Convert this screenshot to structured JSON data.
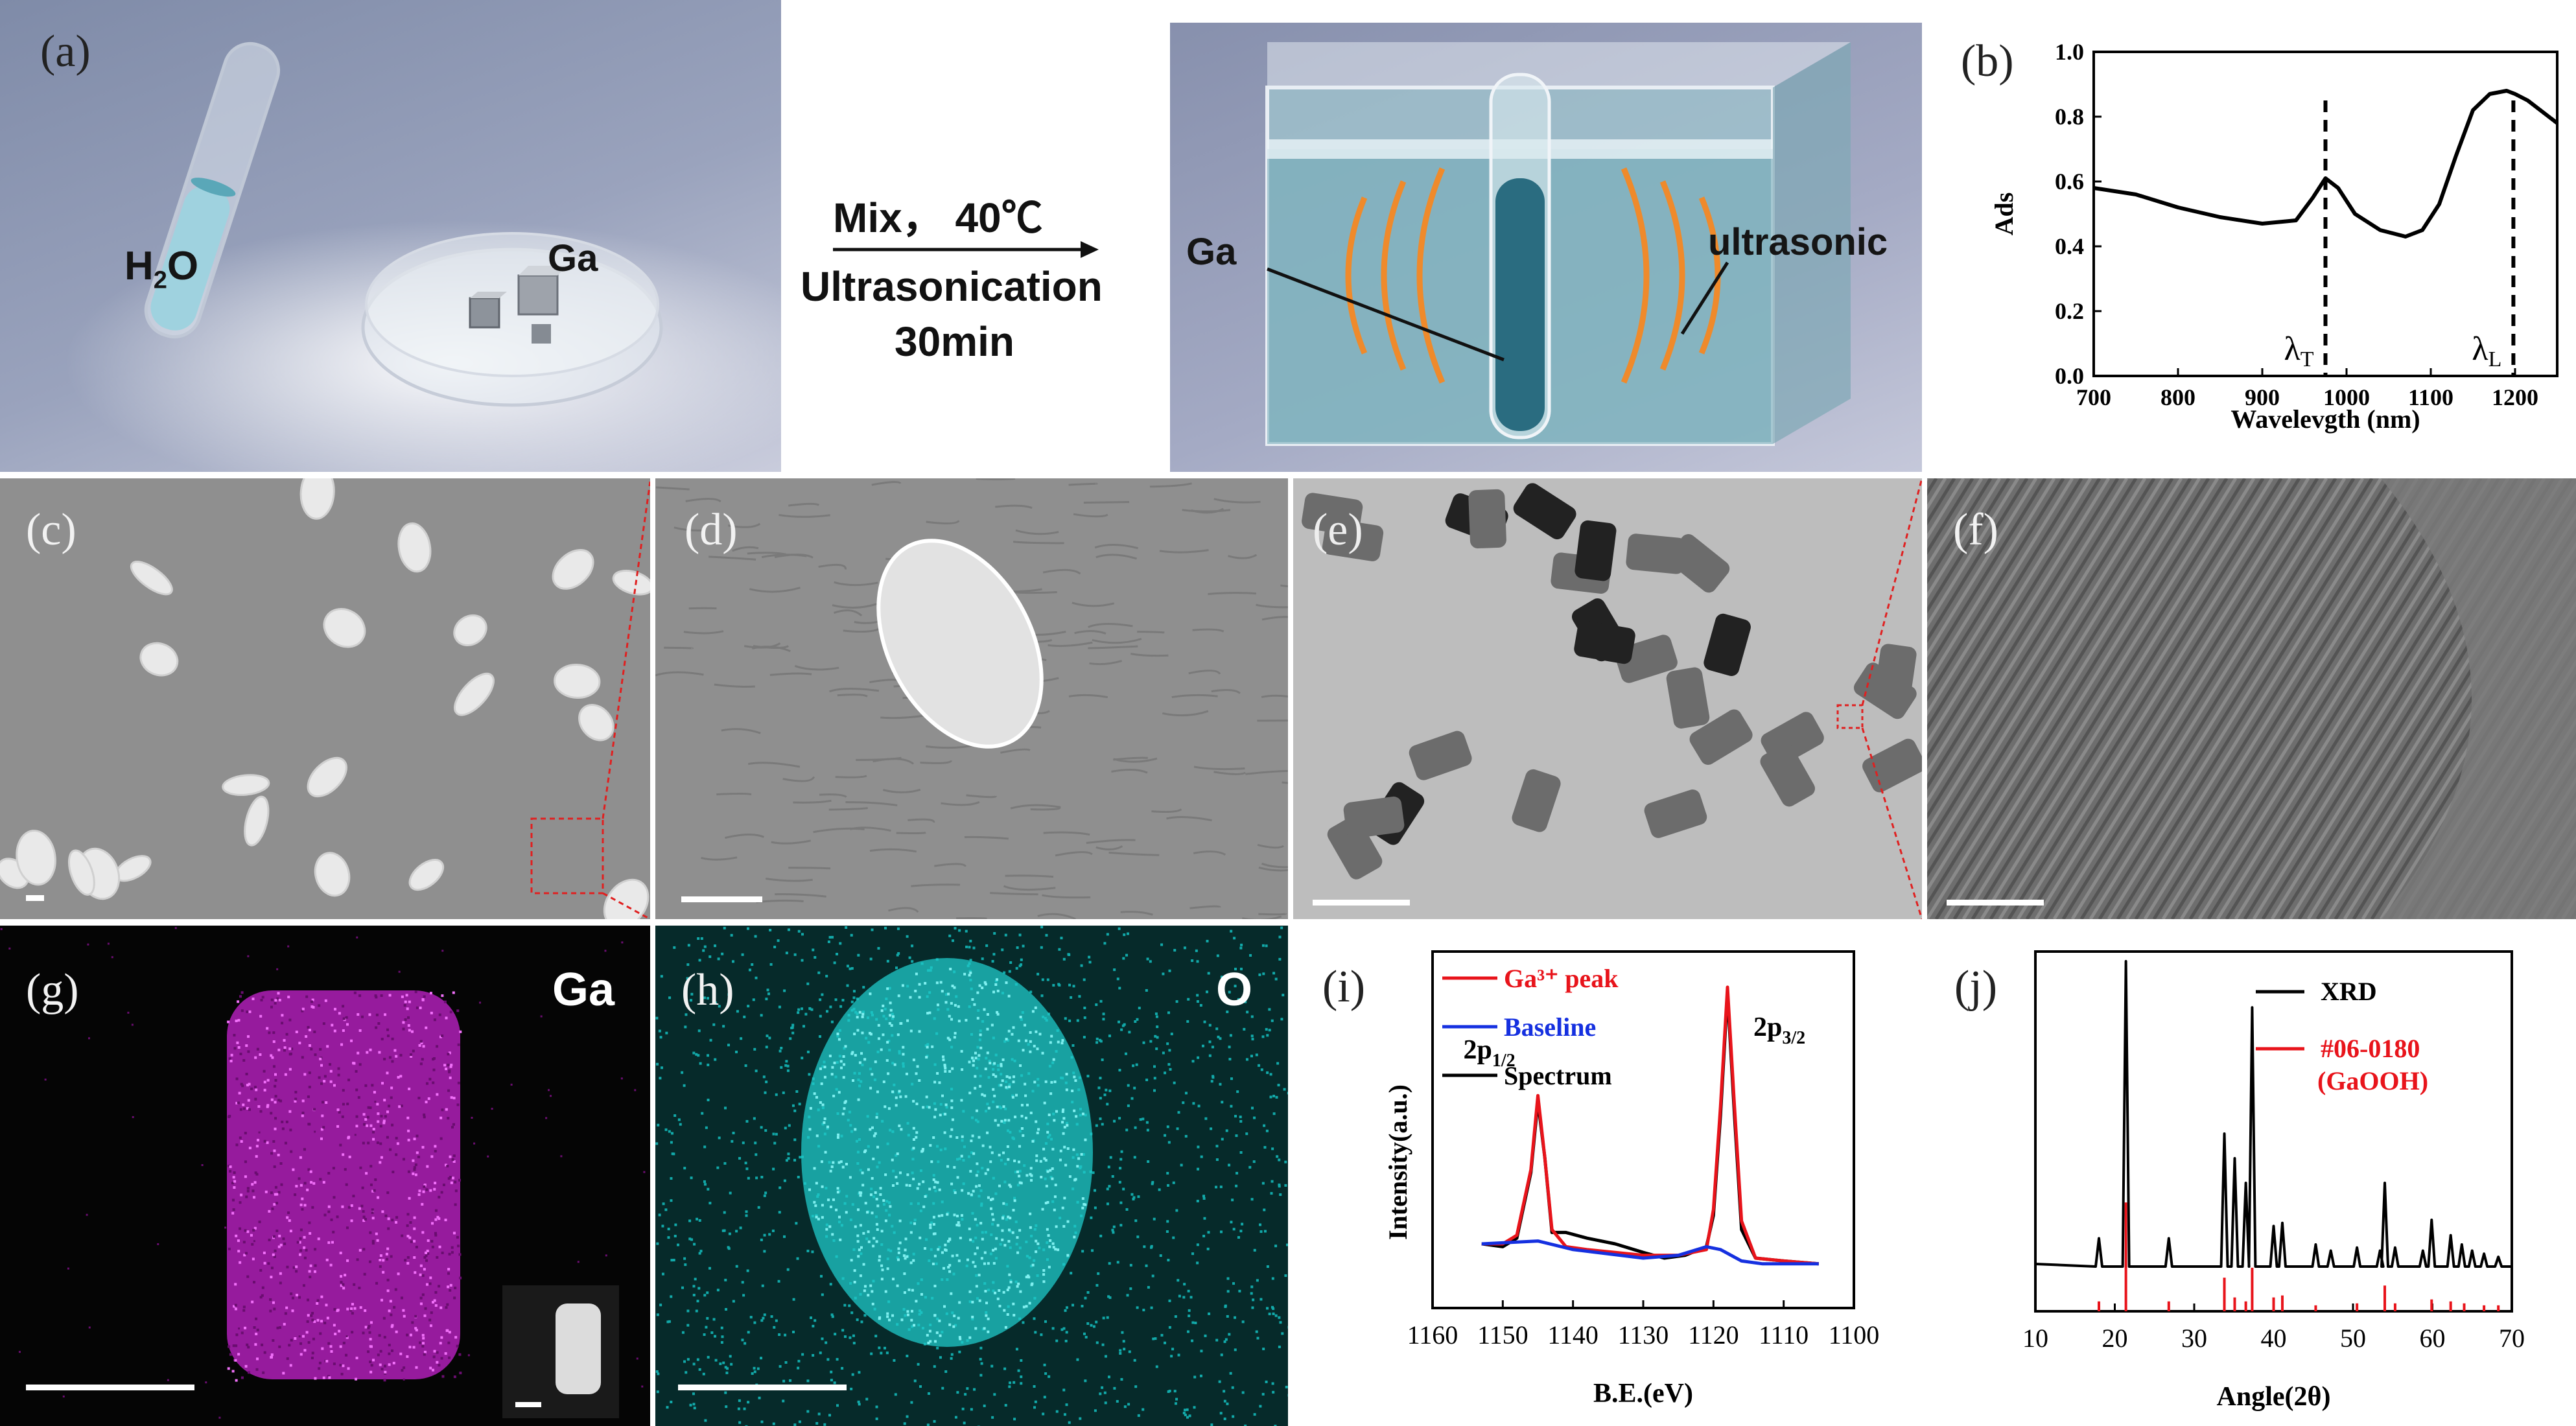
{
  "panel_a": {
    "label": "(a)",
    "water_label": "H",
    "water_sub": "2",
    "water_tail": "O",
    "ga_label_left": "Ga",
    "arrow_line1": "Mix， 40℃",
    "arrow_line2": "Ultrasonication",
    "arrow_line3": "30min",
    "ga_label_right": "Ga",
    "ultrasonic_label": "ultrasonic"
  },
  "panel_b": {
    "label": "(b)",
    "chart_data": {
      "type": "line",
      "title": "",
      "xlabel": "Wavelevgth (nm)",
      "ylabel": "Ads",
      "xlim": [
        700,
        1250
      ],
      "ylim": [
        0.0,
        1.0
      ],
      "xticks": [
        "700",
        "800",
        "900",
        "1000",
        "1100",
        "1200"
      ],
      "yticks": [
        "0.0",
        "0.2",
        "0.4",
        "0.6",
        "0.8",
        "1.0"
      ],
      "series": [
        {
          "x": [
            700,
            750,
            800,
            850,
            900,
            940,
            960,
            975,
            990,
            1010,
            1040,
            1070,
            1090,
            1110,
            1130,
            1150,
            1170,
            1190,
            1200,
            1215,
            1230,
            1250
          ],
          "y": [
            0.58,
            0.56,
            0.52,
            0.49,
            0.47,
            0.48,
            0.55,
            0.61,
            0.58,
            0.5,
            0.45,
            0.43,
            0.45,
            0.53,
            0.68,
            0.82,
            0.87,
            0.88,
            0.87,
            0.85,
            0.82,
            0.78
          ]
        }
      ],
      "annotations": [
        {
          "text": "λ",
          "sub": "T",
          "x": 975
        },
        {
          "text": "λ",
          "sub": "L",
          "x": 1198
        }
      ]
    }
  },
  "panel_c": {
    "label": "(c)"
  },
  "panel_d": {
    "label": "(d)"
  },
  "panel_e": {
    "label": "(e)"
  },
  "panel_f": {
    "label": "(f)"
  },
  "panel_g": {
    "label": "(g)",
    "element": "Ga"
  },
  "panel_h": {
    "label": "(h)",
    "element": "O"
  },
  "panel_i": {
    "label": "(i)",
    "chart_data": {
      "type": "line",
      "xlabel": "B.E.(eV)",
      "ylabel": "Intensity(a.u.)",
      "xlim": [
        1160,
        1100
      ],
      "xticks": [
        "1160",
        "1150",
        "1140",
        "1130",
        "1120",
        "1110",
        "1100"
      ],
      "legend": [
        "Ga³⁺ peak",
        "Baseline",
        "Spectrum"
      ],
      "legend_colors": [
        "#e8141b",
        "#1530e0",
        "#000000"
      ],
      "legend_position": "top-left",
      "peak_labels": [
        {
          "text": "2p",
          "sub": "1/2",
          "x": 1145
        },
        {
          "text": "2p",
          "sub": "3/2",
          "x": 1118
        }
      ],
      "series": [
        {
          "name": "Spectrum",
          "color": "#000000",
          "x": [
            1153,
            1150,
            1148,
            1146,
            1145,
            1144,
            1143,
            1141,
            1138,
            1134,
            1130,
            1127,
            1124,
            1121,
            1120,
            1119,
            1118,
            1117,
            1116,
            1114,
            1110,
            1105
          ],
          "y": [
            0.1,
            0.09,
            0.12,
            0.35,
            0.6,
            0.4,
            0.14,
            0.14,
            0.12,
            0.1,
            0.07,
            0.05,
            0.06,
            0.09,
            0.2,
            0.55,
            0.98,
            0.55,
            0.15,
            0.05,
            0.04,
            0.03
          ]
        },
        {
          "name": "Ga³⁺ peak",
          "color": "#e8141b",
          "x": [
            1153,
            1150,
            1148,
            1146,
            1145,
            1144,
            1143,
            1141,
            1138,
            1130,
            1125,
            1121,
            1120,
            1119,
            1118,
            1117,
            1116,
            1114,
            1110,
            1105
          ],
          "y": [
            0.1,
            0.1,
            0.13,
            0.36,
            0.62,
            0.4,
            0.15,
            0.09,
            0.08,
            0.06,
            0.06,
            0.08,
            0.22,
            0.58,
            1.0,
            0.58,
            0.18,
            0.05,
            0.04,
            0.03
          ]
        },
        {
          "name": "Baseline",
          "color": "#1530e0",
          "x": [
            1153,
            1145,
            1140,
            1130,
            1125,
            1121,
            1119,
            1116,
            1113,
            1110,
            1105
          ],
          "y": [
            0.1,
            0.11,
            0.08,
            0.05,
            0.06,
            0.09,
            0.08,
            0.04,
            0.03,
            0.03,
            0.03
          ]
        }
      ]
    }
  },
  "panel_j": {
    "label": "(j)",
    "chart_data": {
      "type": "line",
      "xlabel": "Angle(2θ)",
      "xlim": [
        10,
        70
      ],
      "xticks": [
        "10",
        "20",
        "30",
        "40",
        "50",
        "60",
        "70"
      ],
      "legend": [
        "XRD",
        "#06-0180",
        "(GaOOH)"
      ],
      "legend_colors": [
        "#000000",
        "#e8141b",
        "#e8141b"
      ],
      "legend_position": "top-right",
      "xrd_peaks": [
        {
          "x": 18.0,
          "h": 0.1
        },
        {
          "x": 21.4,
          "h": 1.0
        },
        {
          "x": 26.8,
          "h": 0.1
        },
        {
          "x": 33.8,
          "h": 0.44
        },
        {
          "x": 35.1,
          "h": 0.36
        },
        {
          "x": 36.5,
          "h": 0.28
        },
        {
          "x": 37.3,
          "h": 0.85
        },
        {
          "x": 40.0,
          "h": 0.14
        },
        {
          "x": 41.1,
          "h": 0.15
        },
        {
          "x": 45.3,
          "h": 0.08
        },
        {
          "x": 47.2,
          "h": 0.06
        },
        {
          "x": 50.5,
          "h": 0.07
        },
        {
          "x": 53.4,
          "h": 0.06
        },
        {
          "x": 54.0,
          "h": 0.28
        },
        {
          "x": 55.3,
          "h": 0.07
        },
        {
          "x": 58.8,
          "h": 0.06
        },
        {
          "x": 59.9,
          "h": 0.16
        },
        {
          "x": 62.3,
          "h": 0.11
        },
        {
          "x": 63.7,
          "h": 0.08
        },
        {
          "x": 65.0,
          "h": 0.06
        },
        {
          "x": 66.5,
          "h": 0.05
        },
        {
          "x": 68.3,
          "h": 0.04
        }
      ],
      "ref_peaks": [
        {
          "x": 18.0,
          "h": 0.05
        },
        {
          "x": 21.4,
          "h": 0.55
        },
        {
          "x": 26.8,
          "h": 0.05
        },
        {
          "x": 33.8,
          "h": 0.17
        },
        {
          "x": 35.1,
          "h": 0.07
        },
        {
          "x": 36.5,
          "h": 0.05
        },
        {
          "x": 37.3,
          "h": 0.22
        },
        {
          "x": 40.0,
          "h": 0.07
        },
        {
          "x": 41.1,
          "h": 0.08
        },
        {
          "x": 45.3,
          "h": 0.03
        },
        {
          "x": 50.5,
          "h": 0.04
        },
        {
          "x": 54.0,
          "h": 0.13
        },
        {
          "x": 55.3,
          "h": 0.04
        },
        {
          "x": 59.9,
          "h": 0.06
        },
        {
          "x": 62.3,
          "h": 0.05
        },
        {
          "x": 64.0,
          "h": 0.04
        },
        {
          "x": 66.5,
          "h": 0.03
        },
        {
          "x": 68.3,
          "h": 0.03
        }
      ]
    }
  }
}
